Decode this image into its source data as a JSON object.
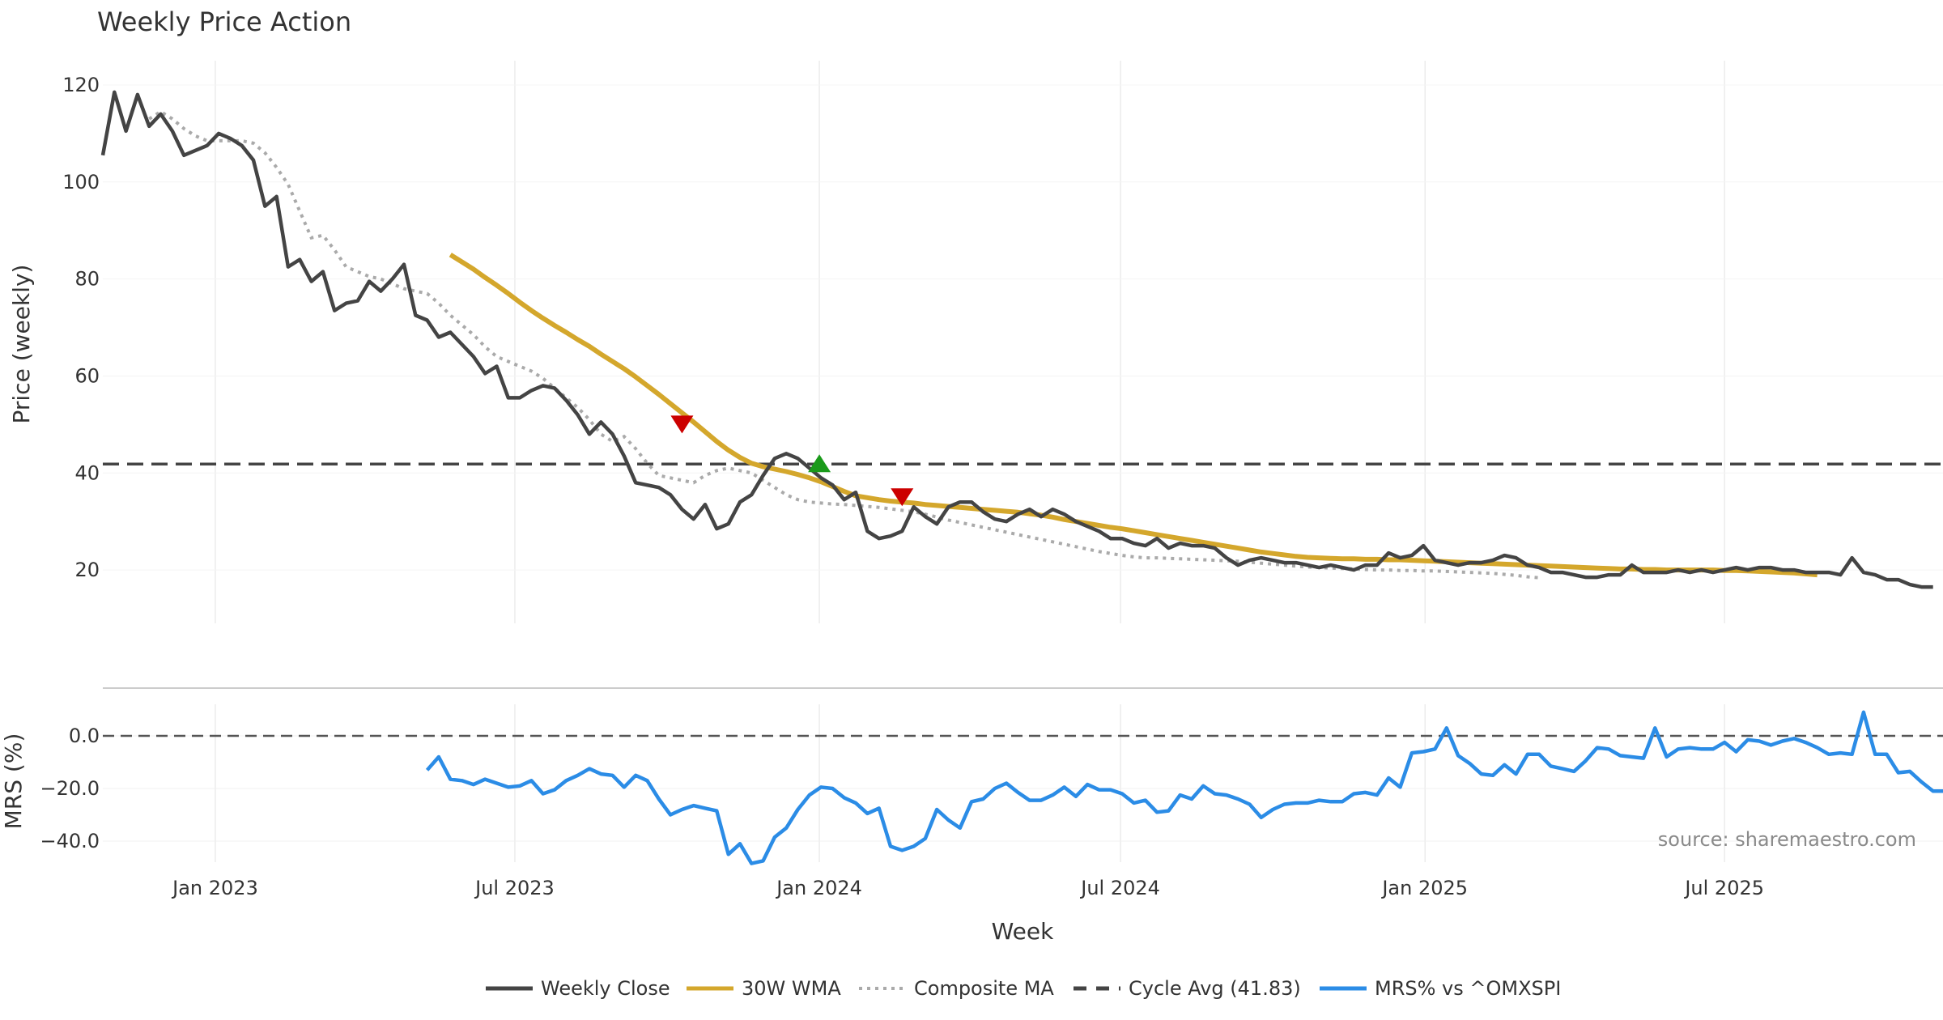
{
  "chart_data": {
    "type": "line",
    "title": "Weekly Price Action",
    "xlabel": "Week",
    "source": "source: sharemaestro.com",
    "colors": {
      "close": "#444444",
      "wma": "#d4a72c",
      "composite": "#aaaaaa",
      "cycle": "#444444",
      "mrs": "#2b8ce6",
      "signal_sell": "#cc0000",
      "signal_buy": "#1a9a1a",
      "grid": "#ececec"
    },
    "x_ticks": [
      {
        "label": "Jan 2023",
        "date": "2023-01-01"
      },
      {
        "label": "Jul 2023",
        "date": "2023-07-01"
      },
      {
        "label": "Jan 2024",
        "date": "2024-01-01"
      },
      {
        "label": "Jul 2024",
        "date": "2024-07-01"
      },
      {
        "label": "Jan 2025",
        "date": "2025-01-01"
      },
      {
        "label": "Jul 2025",
        "date": "2025-07-01"
      }
    ],
    "x_range": [
      "2022-10-25",
      "2025-11-10"
    ],
    "price_panel": {
      "ylabel": "Price (weekly)",
      "ylim": [
        9,
        125
      ],
      "yticks": [
        20,
        40,
        60,
        80,
        100,
        120
      ],
      "cycle_avg": 41.83,
      "series": [
        {
          "name": "Weekly Close",
          "key": "close",
          "start": "2022-10-25",
          "values": [
            105.5,
            118.5,
            110.5,
            118,
            111.5,
            114,
            110.5,
            105.5,
            106.5,
            107.5,
            110,
            109,
            107.5,
            104.5,
            95,
            97,
            82.5,
            84,
            79.5,
            81.5,
            73.5,
            75,
            75.5,
            79.5,
            77.5,
            80,
            83,
            72.5,
            71.5,
            68,
            69,
            66.5,
            64,
            60.5,
            62,
            55.5,
            55.5,
            57,
            58,
            57.5,
            55,
            52,
            48,
            50.5,
            48,
            43.5,
            38,
            37.5,
            37,
            35.5,
            32.5,
            30.5,
            33.5,
            28.5,
            29.5,
            34,
            35.5,
            39.5,
            43,
            44,
            43,
            41,
            39,
            37.5,
            34.5,
            36,
            28,
            26.5,
            27,
            28,
            33,
            31,
            29.5,
            33,
            34,
            34,
            32,
            30.5,
            30,
            31.5,
            32.5,
            31,
            32.5,
            31.5,
            30,
            29,
            28,
            26.5,
            26.5,
            25.5,
            25,
            26.5,
            24.5,
            25.5,
            25,
            25,
            24.5,
            22.5,
            21,
            22,
            22.5,
            22,
            21.5,
            21.5,
            21,
            20.5,
            21,
            20.5,
            20,
            21,
            21,
            23.5,
            22.5,
            23,
            25,
            22,
            21.5,
            21,
            21.5,
            21.5,
            22,
            23,
            22.5,
            21,
            20.5,
            19.5,
            19.5,
            19,
            18.5,
            18.5,
            19,
            19,
            21,
            19.5,
            19.5,
            19.5,
            20,
            19.5,
            20,
            19.5,
            20,
            20.5,
            20,
            20.5,
            20.5,
            20,
            20,
            19.5,
            19.5,
            19.5,
            19,
            22.5,
            19.5,
            19,
            18,
            18,
            17,
            16.5,
            16.5
          ]
        },
        {
          "name": "30W WMA",
          "key": "wma",
          "start": "2023-05-23",
          "values": [
            85,
            83.5,
            82,
            80.3,
            78.7,
            77,
            75.2,
            73.5,
            71.9,
            70.4,
            69,
            67.5,
            66.1,
            64.5,
            63,
            61.5,
            59.8,
            58,
            56.2,
            54.3,
            52.4,
            50.5,
            48.5,
            46.5,
            44.7,
            43.2,
            42,
            41.3,
            40.8,
            40.3,
            39.7,
            39,
            38.2,
            37.2,
            36.2,
            35.3,
            34.9,
            34.5,
            34.2,
            34,
            33.8,
            33.5,
            33.3,
            33.1,
            32.9,
            32.7,
            32.5,
            32.3,
            32.1,
            31.9,
            31.6,
            31.3,
            30.9,
            30.4,
            30,
            29.6,
            29.2,
            28.8,
            28.5,
            28.1,
            27.7,
            27.3,
            26.9,
            26.5,
            26.1,
            25.7,
            25.3,
            24.9,
            24.5,
            24.1,
            23.7,
            23.4,
            23.1,
            22.8,
            22.6,
            22.5,
            22.4,
            22.3,
            22.3,
            22.2,
            22.2,
            22.1,
            22.1,
            22,
            21.9,
            21.8,
            21.7,
            21.6,
            21.5,
            21.4,
            21.3,
            21.2,
            21.1,
            21,
            20.9,
            20.8,
            20.7,
            20.6,
            20.5,
            20.4,
            20.3,
            20.2,
            20.2,
            20.1,
            20.1,
            20,
            20,
            20,
            20,
            20,
            19.9,
            19.9,
            19.8,
            19.7,
            19.6,
            19.5,
            19.4,
            19.2,
            19
          ]
        },
        {
          "name": "Composite MA",
          "key": "composite",
          "start": "2022-11-22",
          "values": [
            113,
            114.5,
            113,
            111,
            109.5,
            108.5,
            108.5,
            108.5,
            108.5,
            108,
            106,
            103,
            99.5,
            94,
            88.5,
            89,
            86,
            82.5,
            81.5,
            80.5,
            80,
            79,
            78,
            77.5,
            77,
            75,
            72.5,
            70.5,
            68.5,
            66,
            64,
            63,
            62,
            61,
            59.5,
            57.5,
            55.5,
            53.5,
            51,
            48,
            46.5,
            47.5,
            45,
            42,
            39.5,
            39,
            38.5,
            38,
            39.5,
            40.5,
            41,
            40.5,
            40,
            38.5,
            37,
            35.5,
            34.5,
            34,
            33.8,
            33.6,
            33.5,
            33.3,
            33.1,
            32.9,
            32.6,
            32.3,
            32,
            31.5,
            30.9,
            30.3,
            29.8,
            29.3,
            28.8,
            28.3,
            27.8,
            27.3,
            26.8,
            26.3,
            25.8,
            25.3,
            24.8,
            24.3,
            23.8,
            23.4,
            23,
            22.7,
            22.5,
            22.5,
            22.4,
            22.3,
            22.2,
            22.1,
            22,
            21.9,
            21.8,
            21.6,
            21.4,
            21.2,
            21,
            20.8,
            20.6,
            20.5,
            20.4,
            20.3,
            20.2,
            20.1,
            20,
            20,
            19.9,
            19.9,
            19.8,
            19.8,
            19.7,
            19.6,
            19.5,
            19.4,
            19.3,
            19.1,
            18.9,
            18.6,
            18.4
          ]
        },
        {
          "name": "Cycle Avg (41.83)",
          "key": "cycle",
          "value": 41.83
        }
      ],
      "signals": [
        {
          "type": "sell",
          "date": "2023-10-10",
          "value": 50
        },
        {
          "type": "buy",
          "date": "2024-01-01",
          "value": 42
        },
        {
          "type": "sell",
          "date": "2024-02-20",
          "value": 35
        }
      ]
    },
    "mrs_panel": {
      "ylabel": "MRS (%)",
      "ylim": [
        -48,
        12
      ],
      "yticks": [
        0,
        -20,
        -40
      ],
      "ytick_labels": [
        "0.0",
        "−20.0",
        "−40.0"
      ],
      "zero_line": 0,
      "series": [
        {
          "name": "MRS% vs ^OMXSPI",
          "key": "mrs",
          "start": "2023-05-09",
          "values": [
            -13,
            -8,
            -16.5,
            -17,
            -18.5,
            -16.5,
            -18,
            -19.5,
            -19,
            -17,
            -22,
            -20.5,
            -17,
            -15,
            -12.5,
            -14.5,
            -15,
            -19.5,
            -15,
            -17,
            -24,
            -30,
            -28,
            -26.5,
            -27.5,
            -28.5,
            -45,
            -41,
            -48.5,
            -47.5,
            -38.5,
            -35,
            -28,
            -22.5,
            -19.5,
            -20,
            -23.5,
            -25.5,
            -29.5,
            -27.5,
            -42,
            -43.5,
            -42,
            -39,
            -28,
            -32,
            -35,
            -25,
            -24,
            -20,
            -18,
            -21.5,
            -24.5,
            -24.5,
            -22.5,
            -19.5,
            -23,
            -18.5,
            -20.5,
            -20.5,
            -22,
            -25.5,
            -24.5,
            -29,
            -28.5,
            -22.5,
            -24,
            -19,
            -22,
            -22.5,
            -24,
            -26,
            -31,
            -28,
            -26,
            -25.5,
            -25.5,
            -24.5,
            -25,
            -25,
            -22,
            -21.5,
            -22.5,
            -16,
            -19.5,
            -6.5,
            -6,
            -5,
            3,
            -7.5,
            -10.5,
            -14.5,
            -15,
            -11,
            -14.5,
            -7,
            -7,
            -11.5,
            -12.5,
            -13.5,
            -9.5,
            -4.5,
            -5,
            -7.5,
            -8,
            -8.5,
            3,
            -8,
            -5,
            -4.5,
            -5,
            -5,
            -2.5,
            -6,
            -1.5,
            -2,
            -3.5,
            -2,
            -1,
            -2.5,
            -4.5,
            -7,
            -6.5,
            -7,
            9,
            -7,
            -7,
            -14,
            -13.5,
            -17.5,
            -21,
            -21
          ]
        }
      ]
    },
    "legend": [
      {
        "label": "Weekly Close",
        "key": "close",
        "style": "solid"
      },
      {
        "label": "30W WMA",
        "key": "wma",
        "style": "solid"
      },
      {
        "label": "Composite MA",
        "key": "composite",
        "style": "dotted"
      },
      {
        "label": "Cycle Avg (41.83)",
        "key": "cycle",
        "style": "dashed"
      },
      {
        "label": "MRS% vs ^OMXSPI",
        "key": "mrs",
        "style": "solid"
      }
    ]
  }
}
